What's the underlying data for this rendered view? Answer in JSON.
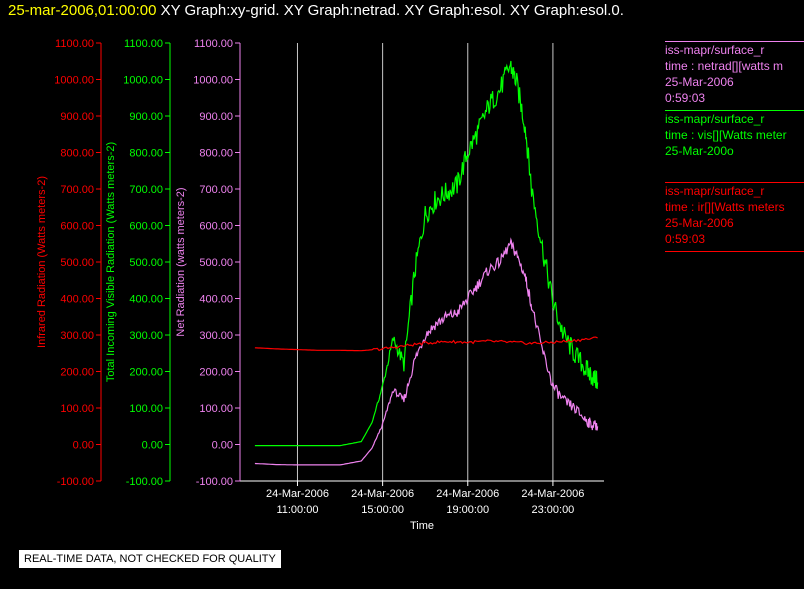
{
  "header": {
    "date": "25-mar-2006,01:00:00",
    "graphs": "XY Graph:xy-grid.  XY Graph:netrad.  XY Graph:esol.  XY Graph:esol.0."
  },
  "legend": [
    {
      "source": "iss-mapr/surface_r",
      "var": "time : netrad[][watts m",
      "date": "25-Mar-2006",
      "time": "0:59:03",
      "color": "#ee82ee"
    },
    {
      "source": "iss-mapr/surface_r",
      "var": "time : vis[][Watts meter",
      "date": "25-Mar-200o",
      "time": "",
      "color": "#00ff00"
    },
    {
      "source": "iss-mapr/surface_r",
      "var": "time : ir[][Watts meters",
      "date": "25-Mar-2006",
      "time": "0:59:03",
      "color": "#ff0000"
    }
  ],
  "notice": "REAL-TIME DATA, NOT CHECKED FOR QUALITY",
  "chart_data": {
    "type": "line",
    "xlabel": "Time",
    "x_range_hours": [
      8.3,
      25.4
    ],
    "x_ticks": [
      {
        "hour": 11,
        "date": "24-Mar-2006",
        "time": "11:00:00"
      },
      {
        "hour": 15,
        "date": "24-Mar-2006",
        "time": "15:00:00"
      },
      {
        "hour": 19,
        "date": "24-Mar-2006",
        "time": "19:00:00"
      },
      {
        "hour": 23,
        "date": "24-Mar-2006",
        "time": "23:00:00"
      }
    ],
    "ylim": [
      -100,
      1100
    ],
    "y_ticks": [
      "1100.00",
      "1000.00",
      "900.00",
      "800.00",
      "700.00",
      "600.00",
      "500.00",
      "400.00",
      "300.00",
      "200.00",
      "100.00",
      "0.00",
      "-100.00"
    ],
    "axes": [
      {
        "label": "Infrared Radiation (Watts meters-2)",
        "color": "#ff0000"
      },
      {
        "label": "Total Incoming Visible Radiation (Watts meters-2)",
        "color": "#00ff00"
      },
      {
        "label": "Net Radiation (watts meters-2)",
        "color": "#ee82ee"
      }
    ],
    "grid": "vertical",
    "series": [
      {
        "name": "vis",
        "color": "#00ff00",
        "x": [
          9,
          10,
          11,
          12,
          13,
          14,
          14.5,
          15,
          15.5,
          16,
          16.5,
          17,
          17.5,
          18,
          18.5,
          19,
          19.5,
          20,
          20.5,
          21,
          21.3,
          21.7,
          22,
          22.5,
          23,
          23.5,
          24,
          24.5,
          24.8,
          25.1
        ],
        "y": [
          -3,
          -3,
          -3,
          -3,
          -3,
          8,
          60,
          160,
          290,
          220,
          470,
          630,
          670,
          690,
          710,
          800,
          860,
          930,
          970,
          1040,
          990,
          870,
          700,
          540,
          390,
          300,
          250,
          210,
          190,
          170
        ]
      },
      {
        "name": "netrad",
        "color": "#ee82ee",
        "x": [
          9,
          10,
          11,
          12,
          13,
          14,
          14.5,
          15,
          15.5,
          16,
          16.5,
          17,
          17.5,
          18,
          18.5,
          19,
          19.5,
          20,
          20.5,
          21,
          21.3,
          21.7,
          22,
          22.5,
          23,
          23.5,
          24,
          24.5,
          24.8,
          25.1
        ],
        "y": [
          -52,
          -55,
          -56,
          -56,
          -56,
          -45,
          -10,
          55,
          150,
          120,
          230,
          300,
          330,
          350,
          360,
          400,
          440,
          480,
          500,
          550,
          520,
          460,
          380,
          260,
          160,
          120,
          100,
          70,
          55,
          50
        ]
      },
      {
        "name": "ir",
        "color": "#ff0000",
        "x": [
          9,
          10,
          11,
          12,
          13,
          14,
          15,
          16,
          17,
          18,
          19,
          20,
          21,
          22,
          23,
          24,
          25.1
        ],
        "y": [
          265,
          262,
          260,
          258,
          258,
          257,
          262,
          270,
          278,
          282,
          280,
          283,
          280,
          277,
          280,
          285,
          292
        ]
      }
    ]
  }
}
